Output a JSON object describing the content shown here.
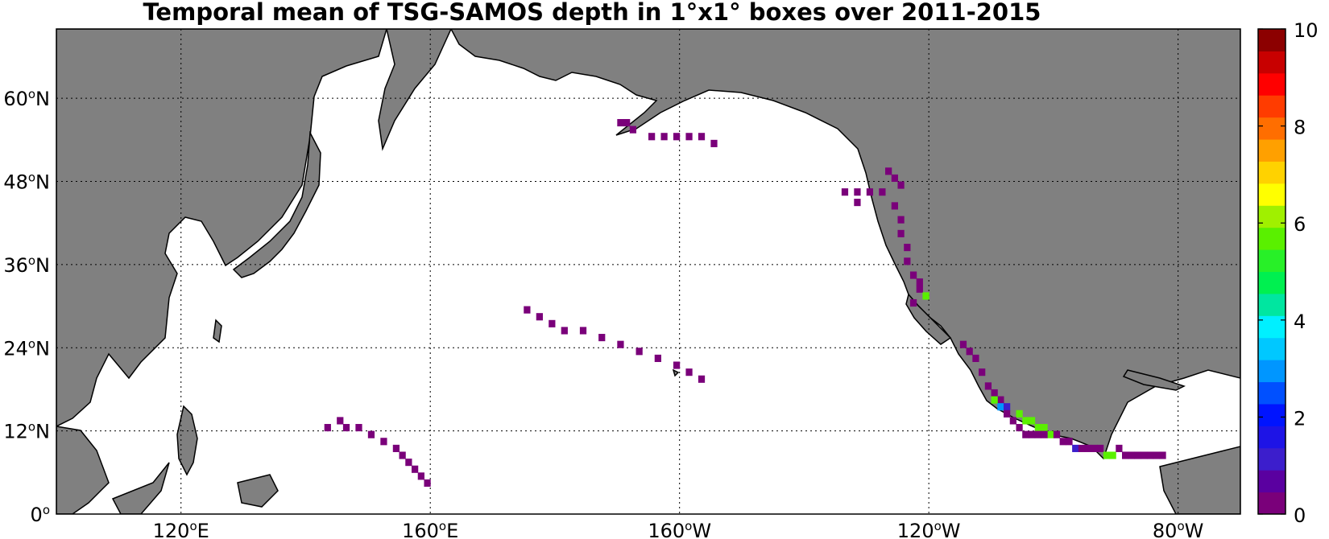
{
  "title": "Temporal mean of TSG-SAMOS depth in 1°x1° boxes over 2011-2015",
  "map": {
    "projection": "equirectangular",
    "lon_range": [
      100,
      290
    ],
    "lat_range": [
      0,
      70
    ],
    "land_color": "#808080",
    "ocean_color": "#ffffff",
    "grid": "dotted",
    "lon_ticks": [
      {
        "deg": "120",
        "hemi": "E"
      },
      {
        "deg": "160",
        "hemi": "E"
      },
      {
        "deg": "160",
        "hemi": "W"
      },
      {
        "deg": "120",
        "hemi": "W"
      },
      {
        "deg": "80",
        "hemi": "W"
      }
    ],
    "lat_ticks": [
      {
        "deg": "0",
        "hemi": ""
      },
      {
        "deg": "12",
        "hemi": "N"
      },
      {
        "deg": "24",
        "hemi": "N"
      },
      {
        "deg": "36",
        "hemi": "N"
      },
      {
        "deg": "48",
        "hemi": "N"
      },
      {
        "deg": "60",
        "hemi": "N"
      }
    ]
  },
  "colorbar": {
    "min": 0,
    "max": 10,
    "levels": 20,
    "tick_labels": [
      "0",
      "2",
      "4",
      "6",
      "8",
      "10"
    ],
    "colors": [
      "#7a007a",
      "#5a00a0",
      "#3c1ecc",
      "#1e14e6",
      "#0014ff",
      "#0050ff",
      "#0096ff",
      "#00c8ff",
      "#00f0ff",
      "#00e6a0",
      "#00f050",
      "#28f028",
      "#5af000",
      "#a0f000",
      "#ffff00",
      "#ffd200",
      "#ffa000",
      "#ff6e00",
      "#ff3c00",
      "#ff0000",
      "#c80000",
      "#8c0000"
    ]
  },
  "chart_data": {
    "type": "heatmap",
    "title": "Temporal mean of TSG-SAMOS depth in 1°x1° boxes over 2011-2015",
    "value_units": "depth (colorbar 0-10)",
    "cell_size_deg": 1,
    "cells": [
      {
        "lon": 190.5,
        "lat": 56.5,
        "v": 0
      },
      {
        "lon": 191.5,
        "lat": 56.5,
        "v": 0
      },
      {
        "lon": 192.5,
        "lat": 55.5,
        "v": 0
      },
      {
        "lon": 195.5,
        "lat": 54.5,
        "v": 0
      },
      {
        "lon": 197.5,
        "lat": 54.5,
        "v": 0
      },
      {
        "lon": 199.5,
        "lat": 54.5,
        "v": 0
      },
      {
        "lon": 201.5,
        "lat": 54.5,
        "v": 0
      },
      {
        "lon": 203.5,
        "lat": 54.5,
        "v": 0
      },
      {
        "lon": 205.5,
        "lat": 53.5,
        "v": 0
      },
      {
        "lon": 226.5,
        "lat": 46.5,
        "v": 0
      },
      {
        "lon": 228.5,
        "lat": 46.5,
        "v": 0
      },
      {
        "lon": 230.5,
        "lat": 46.5,
        "v": 0
      },
      {
        "lon": 232.5,
        "lat": 46.5,
        "v": 0
      },
      {
        "lon": 228.5,
        "lat": 45.0,
        "v": 0
      },
      {
        "lon": 233.5,
        "lat": 49.5,
        "v": 0
      },
      {
        "lon": 234.5,
        "lat": 48.5,
        "v": 0
      },
      {
        "lon": 235.5,
        "lat": 47.5,
        "v": 0
      },
      {
        "lon": 234.5,
        "lat": 44.5,
        "v": 0
      },
      {
        "lon": 235.5,
        "lat": 42.5,
        "v": 0
      },
      {
        "lon": 235.5,
        "lat": 40.5,
        "v": 0
      },
      {
        "lon": 236.5,
        "lat": 38.5,
        "v": 0
      },
      {
        "lon": 236.5,
        "lat": 36.5,
        "v": 0
      },
      {
        "lon": 237.5,
        "lat": 34.5,
        "v": 0
      },
      {
        "lon": 238.5,
        "lat": 33.5,
        "v": 0
      },
      {
        "lon": 238.5,
        "lat": 32.5,
        "v": 0
      },
      {
        "lon": 239.5,
        "lat": 31.5,
        "v": 6
      },
      {
        "lon": 237.5,
        "lat": 30.5,
        "v": 0
      },
      {
        "lon": 175.5,
        "lat": 29.5,
        "v": 0
      },
      {
        "lon": 177.5,
        "lat": 28.5,
        "v": 0
      },
      {
        "lon": 179.5,
        "lat": 27.5,
        "v": 0
      },
      {
        "lon": 181.5,
        "lat": 26.5,
        "v": 0
      },
      {
        "lon": 184.5,
        "lat": 26.5,
        "v": 0
      },
      {
        "lon": 187.5,
        "lat": 25.5,
        "v": 0
      },
      {
        "lon": 190.5,
        "lat": 24.5,
        "v": 0
      },
      {
        "lon": 193.5,
        "lat": 23.5,
        "v": 0
      },
      {
        "lon": 196.5,
        "lat": 22.5,
        "v": 0
      },
      {
        "lon": 199.5,
        "lat": 21.5,
        "v": 0
      },
      {
        "lon": 201.5,
        "lat": 20.5,
        "v": 0
      },
      {
        "lon": 203.5,
        "lat": 19.5,
        "v": 0
      },
      {
        "lon": 143.5,
        "lat": 12.5,
        "v": 0
      },
      {
        "lon": 145.5,
        "lat": 13.5,
        "v": 0
      },
      {
        "lon": 146.5,
        "lat": 12.5,
        "v": 0
      },
      {
        "lon": 148.5,
        "lat": 12.5,
        "v": 0
      },
      {
        "lon": 150.5,
        "lat": 11.5,
        "v": 0
      },
      {
        "lon": 152.5,
        "lat": 10.5,
        "v": 0
      },
      {
        "lon": 154.5,
        "lat": 9.5,
        "v": 0
      },
      {
        "lon": 155.5,
        "lat": 8.5,
        "v": 0
      },
      {
        "lon": 156.5,
        "lat": 7.5,
        "v": 0
      },
      {
        "lon": 157.5,
        "lat": 6.5,
        "v": 0
      },
      {
        "lon": 158.5,
        "lat": 5.5,
        "v": 0
      },
      {
        "lon": 159.5,
        "lat": 4.5,
        "v": 0
      },
      {
        "lon": 245.5,
        "lat": 24.5,
        "v": 0
      },
      {
        "lon": 246.5,
        "lat": 23.5,
        "v": 0
      },
      {
        "lon": 247.5,
        "lat": 22.5,
        "v": 0
      },
      {
        "lon": 248.5,
        "lat": 20.5,
        "v": 0
      },
      {
        "lon": 249.5,
        "lat": 18.5,
        "v": 0
      },
      {
        "lon": 250.5,
        "lat": 17.5,
        "v": 0
      },
      {
        "lon": 251.5,
        "lat": 16.5,
        "v": 0
      },
      {
        "lon": 250.5,
        "lat": 16.5,
        "v": 6
      },
      {
        "lon": 251.5,
        "lat": 15.5,
        "v": 3
      },
      {
        "lon": 252.5,
        "lat": 15.5,
        "v": 1
      },
      {
        "lon": 252.5,
        "lat": 14.5,
        "v": 0
      },
      {
        "lon": 253.5,
        "lat": 13.5,
        "v": 0
      },
      {
        "lon": 254.5,
        "lat": 14.5,
        "v": 6
      },
      {
        "lon": 254.5,
        "lat": 12.5,
        "v": 0
      },
      {
        "lon": 255.5,
        "lat": 13.5,
        "v": 6
      },
      {
        "lon": 256.5,
        "lat": 13.5,
        "v": 6
      },
      {
        "lon": 257.5,
        "lat": 12.5,
        "v": 6
      },
      {
        "lon": 258.5,
        "lat": 12.5,
        "v": 6
      },
      {
        "lon": 259.5,
        "lat": 11.5,
        "v": 6
      },
      {
        "lon": 255.5,
        "lat": 11.5,
        "v": 0
      },
      {
        "lon": 256.5,
        "lat": 11.5,
        "v": 0
      },
      {
        "lon": 257.5,
        "lat": 11.5,
        "v": 0
      },
      {
        "lon": 258.5,
        "lat": 11.5,
        "v": 0
      },
      {
        "lon": 260.5,
        "lat": 11.5,
        "v": 0
      },
      {
        "lon": 261.5,
        "lat": 10.5,
        "v": 0
      },
      {
        "lon": 262.5,
        "lat": 10.5,
        "v": 0
      },
      {
        "lon": 263.5,
        "lat": 9.5,
        "v": 1
      },
      {
        "lon": 264.5,
        "lat": 9.5,
        "v": 0
      },
      {
        "lon": 265.5,
        "lat": 9.5,
        "v": 0
      },
      {
        "lon": 266.5,
        "lat": 9.5,
        "v": 0
      },
      {
        "lon": 267.5,
        "lat": 9.5,
        "v": 0
      },
      {
        "lon": 268.5,
        "lat": 8.5,
        "v": 6
      },
      {
        "lon": 269.5,
        "lat": 8.5,
        "v": 6
      },
      {
        "lon": 270.5,
        "lat": 9.5,
        "v": 0
      },
      {
        "lon": 271.5,
        "lat": 8.5,
        "v": 0
      },
      {
        "lon": 272.5,
        "lat": 8.5,
        "v": 0
      },
      {
        "lon": 273.5,
        "lat": 8.5,
        "v": 0
      },
      {
        "lon": 274.5,
        "lat": 8.5,
        "v": 0
      },
      {
        "lon": 275.5,
        "lat": 8.5,
        "v": 0
      },
      {
        "lon": 276.5,
        "lat": 8.5,
        "v": 0
      },
      {
        "lon": 277.5,
        "lat": 8.5,
        "v": 0
      }
    ]
  }
}
